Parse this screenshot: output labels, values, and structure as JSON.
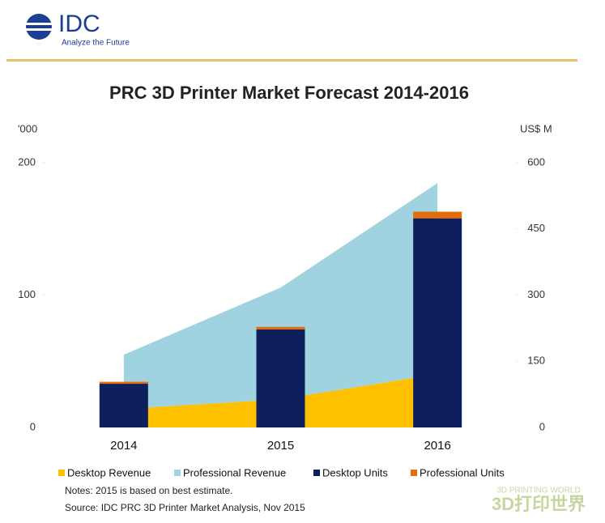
{
  "header": {
    "logo": "IDC",
    "tagline": "Analyze the Future"
  },
  "watermark": {
    "title": "3D打印世界",
    "subtitle": "3D PRINTING WORLD"
  },
  "chart_data": {
    "type": "bar_area",
    "title": "PRC 3D Printer Market Forecast 2014-2016",
    "y_unit": "'000",
    "y2_unit": "US$ M",
    "categories": [
      "2014",
      "2015",
      "2016"
    ],
    "ylim": [
      0,
      200
    ],
    "yticks": [
      0,
      100,
      200
    ],
    "y2lim": [
      0,
      600
    ],
    "y2ticks": [
      0,
      150,
      300,
      450,
      600
    ],
    "series": [
      {
        "name": "Desktop Revenue",
        "color": "#ffc000",
        "kind": "area",
        "axis": "y2",
        "values": [
          42,
          64,
          121
        ]
      },
      {
        "name": "Professional Revenue",
        "color": "#9fd3df",
        "kind": "area",
        "axis": "y2",
        "values": [
          123,
          253,
          433
        ]
      },
      {
        "name": "Desktop Units",
        "color": "#0d1f5c",
        "kind": "bar",
        "values": [
          33,
          74,
          158
        ]
      },
      {
        "name": "Professional Units",
        "color": "#e46c0a",
        "kind": "bar",
        "values": [
          1.5,
          2,
          5
        ]
      }
    ],
    "notes": [
      "Notes: 2015 is based on best estimate.",
      "Source: IDC PRC 3D Printer Market Analysis, Nov 2015"
    ]
  }
}
